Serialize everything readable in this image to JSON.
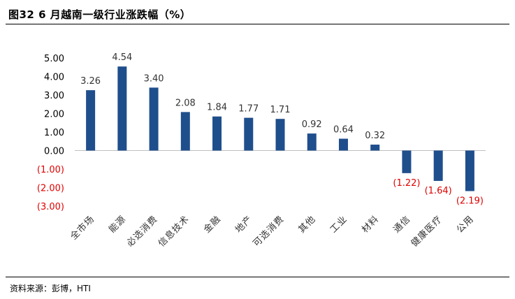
{
  "header": {
    "title": "图32 6 月越南一级行业涨跌幅（%）"
  },
  "footer": {
    "source": "资料来源：彭博，HTI"
  },
  "chart_data": {
    "type": "bar",
    "title": "图32 6 月越南一级行业涨跌幅（%）",
    "xlabel": "",
    "ylabel": "",
    "ylim": [
      -3,
      5
    ],
    "yticks": [
      {
        "value": 5,
        "label": "5.00"
      },
      {
        "value": 4,
        "label": "4.00"
      },
      {
        "value": 3,
        "label": "3.00"
      },
      {
        "value": 2,
        "label": "2.00"
      },
      {
        "value": 1,
        "label": "1.00"
      },
      {
        "value": 0,
        "label": "0.00"
      },
      {
        "value": -1,
        "label": "(1.00)"
      },
      {
        "value": -2,
        "label": "(2.00)"
      },
      {
        "value": -3,
        "label": "(3.00)"
      }
    ],
    "grid": false,
    "legend": "none",
    "categories": [
      "全市场",
      "能源",
      "必选消费",
      "信息技术",
      "金融",
      "地产",
      "可选消费",
      "其他",
      "工业",
      "材料",
      "通信",
      "健康医疗",
      "公用"
    ],
    "values": [
      3.26,
      4.54,
      3.4,
      2.08,
      1.84,
      1.77,
      1.71,
      0.92,
      0.64,
      0.32,
      -1.22,
      -1.64,
      -2.19
    ],
    "value_labels": [
      "3.26",
      "4.54",
      "3.40",
      "2.08",
      "1.84",
      "1.77",
      "1.71",
      "0.92",
      "0.64",
      "0.32",
      "(1.22)",
      "(1.64)",
      "(2.19)"
    ],
    "colors": {
      "bar": "#1F4E8C",
      "negative_label": "#E00000",
      "positive_label": "#333333",
      "axis_line": "#BFBFBF"
    }
  }
}
